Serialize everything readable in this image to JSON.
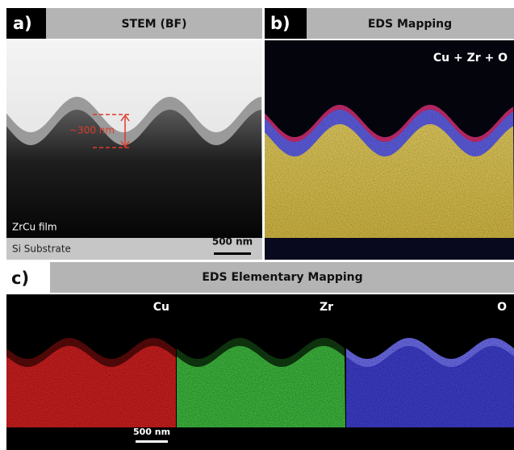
{
  "panels": [
    {
      "label": "a)",
      "header": "STEM (BF)",
      "annotations": [
        "~300 nm",
        "ZrCu film",
        "Si Substrate"
      ],
      "scale_bar": "500 nm"
    },
    {
      "label": "b)",
      "header": "EDS Mapping",
      "annotations": [
        "Cu + Zr + O"
      ]
    },
    {
      "label": "c)",
      "header": "EDS Elementary Mapping",
      "maps": [
        "Cu",
        "Zr",
        "O"
      ],
      "scale_bar": "500 nm"
    }
  ]
}
